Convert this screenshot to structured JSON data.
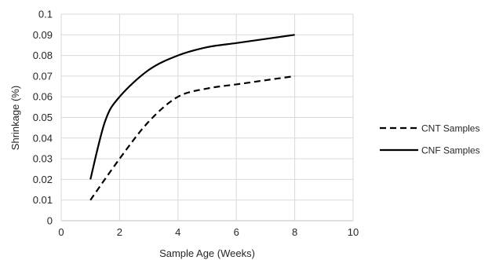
{
  "chart_data": {
    "type": "line",
    "title": "",
    "xlabel": "Sample Age (Weeks)",
    "ylabel": "Shrinkage (%)",
    "xlim": [
      0,
      10
    ],
    "ylim": [
      0,
      0.1
    ],
    "xticks": [
      "0",
      "2",
      "4",
      "6",
      "8",
      "10"
    ],
    "yticks": [
      "0",
      "0.01",
      "0.02",
      "0.03",
      "0.04",
      "0.05",
      "0.06",
      "0.07",
      "0.08",
      "0.09",
      "0.1"
    ],
    "grid": "major, both axes, light gray",
    "legend_position": "right",
    "series": [
      {
        "name": "CNT Samples",
        "line_style": "dashed",
        "color": "#000000",
        "x": [
          1,
          2,
          3,
          4,
          5,
          6,
          7,
          8
        ],
        "y": [
          0.01,
          0.03,
          0.048,
          0.06,
          0.064,
          0.066,
          0.068,
          0.07
        ]
      },
      {
        "name": "CNF Samples",
        "line_style": "solid",
        "color": "#000000",
        "x": [
          1,
          1.5,
          2,
          3,
          4,
          5,
          6,
          7,
          8
        ],
        "y": [
          0.02,
          0.048,
          0.06,
          0.073,
          0.08,
          0.084,
          0.086,
          0.088,
          0.09
        ]
      }
    ]
  }
}
